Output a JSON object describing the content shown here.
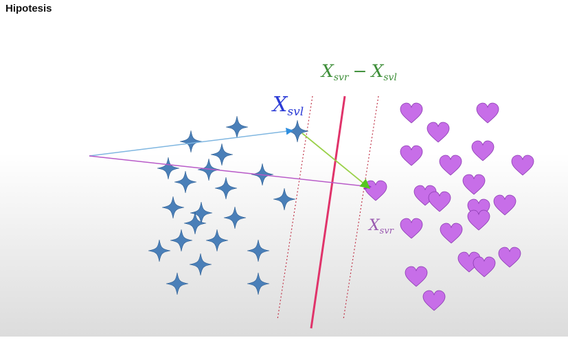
{
  "page": {
    "title": "Hipotesis"
  },
  "diagram": {
    "labels": {
      "difference": {
        "main_left": "X",
        "sub_left": "svr",
        "operator": "−",
        "main_right": "X",
        "sub_right": "svl"
      },
      "left_vector": {
        "main": "X",
        "sub": "svl"
      },
      "right_vector": {
        "main": "X",
        "sub": "svr"
      }
    },
    "colors": {
      "star": "#4a7fb8",
      "heart": "#c76ee8",
      "hyperplane": "#e0336a",
      "margin": "#c0364a",
      "vector_left": "#7fb6e0",
      "vector_right": "#b85ac8",
      "vector_difference": "#9ad14a",
      "label_left": "#2b3bd6",
      "label_diff": "#3f8f3a",
      "label_right": "#9a5ab0"
    }
  }
}
